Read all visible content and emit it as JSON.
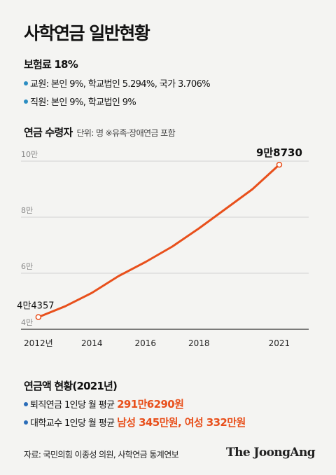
{
  "title": "사학연금 일반현황",
  "insurance": {
    "heading": "보험료 18%",
    "items": [
      "교원: 본인 9%, 학교법인 5.294%, 국가 3.706%",
      "직원: 본인 9%, 학교법인 9%"
    ]
  },
  "chart_header": {
    "heading": "연금 수령자",
    "unit": "단위: 명  ※유족·장애연금 포함"
  },
  "chart_data": {
    "type": "line",
    "x": [
      2012,
      2013,
      2014,
      2015,
      2016,
      2017,
      2018,
      2019,
      2020,
      2021
    ],
    "y": [
      44357,
      48200,
      53000,
      59000,
      64000,
      69500,
      76000,
      83000,
      90000,
      98730
    ],
    "y_ticks": [
      40000,
      60000,
      80000,
      100000
    ],
    "y_tick_labels": [
      "4만",
      "6만",
      "8만",
      "10만"
    ],
    "x_ticks": [
      2012,
      2014,
      2016,
      2018,
      2021
    ],
    "x_tick_labels": [
      "2012년",
      "2014",
      "2016",
      "2018",
      "2021"
    ],
    "xlim": [
      2011.35,
      2022.1
    ],
    "ylim": [
      40000,
      100000
    ],
    "start_label": "4만4357",
    "end_label": "9만8730",
    "line_color": "#e8501c",
    "grid": true
  },
  "amount": {
    "heading": "연금액 현황(2021년)",
    "retire_prefix": "퇴직연금 1인당 월 평균",
    "retire_value": "291만6290원",
    "prof_prefix": "대학교수 1인당 월 평균",
    "prof_value": "남성 345만원, 여성 332만원"
  },
  "footer": {
    "source": "자료: 국민의힘 이종성 의원, 사학연금 통계연보",
    "logo": "The JoongAng"
  }
}
